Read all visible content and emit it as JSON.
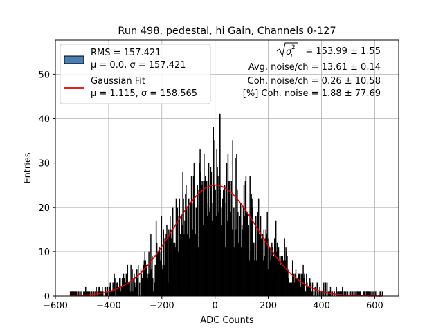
{
  "chart_data": {
    "type": "histogram",
    "title": "Run 498, pedestal, hi Gain, Channels 0-127",
    "xlabel": "ADC Counts",
    "ylabel": "Entries",
    "xlim": [
      -600,
      690
    ],
    "ylim": [
      0,
      57.7
    ],
    "grid": true,
    "xticks": [
      -600,
      -400,
      -200,
      0,
      200,
      400,
      600
    ],
    "xtick_labels": [
      "−600",
      "−400",
      "−200",
      "0",
      "200",
      "400",
      "600"
    ],
    "yticks": [
      0,
      10,
      20,
      30,
      40,
      50
    ],
    "ytick_labels": [
      "0",
      "10",
      "20",
      "30",
      "40",
      "50"
    ],
    "legend": {
      "placement": "top-left",
      "entries": [
        {
          "kind": "patch",
          "line1": "RMS = 157.421",
          "line2": "μ = 0.0, σ = 157.421"
        },
        {
          "kind": "line",
          "line1": "Gaussian Fit",
          "line2": "μ = 1.115, σ = 158.565"
        }
      ]
    },
    "annotations": [
      "= 153.99 ± 1.55",
      "Avg. noise/ch = 13.61 ± 0.14",
      "Coh. noise/ch = 0.26 ± 10.58",
      "[%] Coh. noise = 1.88 ± 77.69"
    ],
    "histogram": {
      "bin_width": 2.5,
      "range": [
        -545,
        630
      ],
      "color": "#000000",
      "legend_patch_color": "#4a7fb5",
      "edge_color": "#000000",
      "peak_entries": 41,
      "sample_heights": [
        {
          "x": -475,
          "y": 2
        },
        {
          "x": -400,
          "y": 3
        },
        {
          "x": -300,
          "y": 9
        },
        {
          "x": -250,
          "y": 11
        },
        {
          "x": -200,
          "y": 16
        },
        {
          "x": -150,
          "y": 22
        },
        {
          "x": -100,
          "y": 26
        },
        {
          "x": -50,
          "y": 30
        },
        {
          "x": 0,
          "y": 30
        },
        {
          "x": 20,
          "y": 41
        },
        {
          "x": 50,
          "y": 29
        },
        {
          "x": 100,
          "y": 26
        },
        {
          "x": 150,
          "y": 21
        },
        {
          "x": 200,
          "y": 16
        },
        {
          "x": 250,
          "y": 11
        },
        {
          "x": 300,
          "y": 8
        },
        {
          "x": 400,
          "y": 3
        },
        {
          "x": 475,
          "y": 2
        }
      ]
    },
    "fit": {
      "name": "Gaussian Fit",
      "color": "#e00000",
      "mu": 1.115,
      "sigma": 158.565,
      "amplitude": 25,
      "x_range": [
        -545,
        630
      ]
    }
  }
}
